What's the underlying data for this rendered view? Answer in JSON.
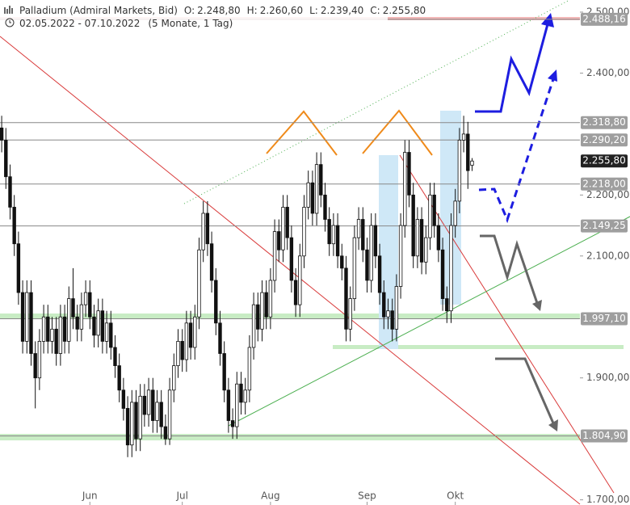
{
  "chart_data": {
    "type": "candlestick",
    "title": "Palladium (Admiral Markets, Bid)",
    "quote_keys": [
      "O:",
      "H:",
      "L:",
      "C:"
    ],
    "quote_values": [
      2248.8,
      2260.6,
      2239.4,
      2255.8
    ],
    "quote_value_labels": [
      "2.248,80",
      "2.260,60",
      "2.239,40",
      "2.255,80"
    ],
    "range": "02.05.2022 - 07.10.2022",
    "period": "(5 Monate, 1 Tag)",
    "up_color": "#ffffff",
    "down_color": "#111111",
    "outline_color": "#111111",
    "ylim": [
      1700,
      2500
    ],
    "yticks": [
      {
        "value": 1700,
        "label": "1.700,00"
      },
      {
        "value": 1900,
        "label": "1.900,00"
      },
      {
        "value": 2100,
        "label": "2.100,00"
      },
      {
        "value": 2200,
        "label": "2.200,00"
      },
      {
        "value": 2400,
        "label": "2.400,00"
      },
      {
        "value": 2500,
        "label": "2.500,00"
      }
    ],
    "xlim": [
      -0.4,
      149.6
    ],
    "xticks": [
      {
        "value": 21,
        "label": "Jun"
      },
      {
        "value": 43,
        "label": "Jul"
      },
      {
        "value": 64,
        "label": "Aug"
      },
      {
        "value": 87,
        "label": "Sep"
      },
      {
        "value": 108,
        "label": "Okt"
      }
    ],
    "levels": [
      {
        "value": 2488.16,
        "label": "2.488,16"
      },
      {
        "value": 2318.8,
        "label": "2.318,80"
      },
      {
        "value": 2290.2,
        "label": "2.290,20"
      },
      {
        "value": 2255.8,
        "label": "2.255,80"
      },
      {
        "value": 2218,
        "label": "2.218,00"
      },
      {
        "value": 2149.25,
        "label": "2.149,25"
      },
      {
        "value": 1997.1,
        "label": "1.997,10"
      },
      {
        "value": 1804.9,
        "label": "1.804,90"
      }
    ],
    "level_colors": [
      "#9e9e9e",
      "#9e9e9e",
      "#9e9e9e",
      "#222222",
      "#9e9e9e",
      "#9e9e9e",
      "#9e9e9e",
      "#9e9e9e"
    ],
    "x": [
      0,
      1,
      2,
      3,
      4,
      5,
      6,
      7,
      8,
      9,
      10,
      11,
      12,
      13,
      14,
      15,
      16,
      17,
      18,
      19,
      20,
      21,
      22,
      23,
      24,
      25,
      26,
      27,
      28,
      29,
      30,
      31,
      32,
      33,
      34,
      35,
      36,
      37,
      38,
      39,
      40,
      41,
      42,
      43,
      44,
      45,
      46,
      47,
      48,
      49,
      50,
      51,
      52,
      53,
      54,
      55,
      56,
      57,
      58,
      59,
      60,
      61,
      62,
      63,
      64,
      65,
      66,
      67,
      68,
      69,
      70,
      71,
      72,
      73,
      74,
      75,
      76,
      77,
      78,
      79,
      80,
      81,
      82,
      83,
      84,
      85,
      86,
      87,
      88,
      89,
      90,
      91,
      92,
      93,
      94,
      95,
      96,
      97,
      98,
      99,
      100,
      101,
      102,
      103,
      104,
      105,
      106,
      107,
      108,
      109,
      110,
      111,
      112
    ],
    "open": [
      2310,
      2290,
      2230,
      2180,
      2120,
      2040,
      1960,
      2040,
      1940,
      1900,
      1960,
      2000,
      1960,
      1980,
      1940,
      2000,
      1960,
      2030,
      2000,
      1980,
      2020,
      2040,
      2000,
      1970,
      2010,
      1960,
      1990,
      1950,
      1920,
      1880,
      1850,
      1790,
      1860,
      1800,
      1870,
      1840,
      1880,
      1830,
      1860,
      1820,
      1800,
      1880,
      1920,
      1960,
      1930,
      1990,
      1950,
      2000,
      2110,
      2170,
      2120,
      2060,
      1990,
      1940,
      1880,
      1830,
      1820,
      1890,
      1860,
      1880,
      1950,
      2020,
      1980,
      2040,
      2000,
      2060,
      2140,
      2110,
      2180,
      2130,
      2060,
      2020,
      2100,
      2180,
      2220,
      2170,
      2250,
      2200,
      2160,
      2120,
      2150,
      2100,
      2080,
      1980,
      2030,
      2130,
      2160,
      2110,
      2060,
      2150,
      2100,
      2040,
      2000,
      2010,
      1980,
      2050,
      2150,
      2270,
      2200,
      2100,
      2160,
      2090,
      2130,
      2200,
      2150,
      2110,
      2030,
      2010,
      2150,
      2190,
      2290,
      2300,
      2248.8
    ],
    "high": [
      2330,
      2310,
      2250,
      2200,
      2140,
      2060,
      2060,
      2060,
      1960,
      1980,
      2020,
      2020,
      2000,
      2000,
      2020,
      2020,
      2050,
      2080,
      2020,
      2040,
      2060,
      2060,
      2020,
      2030,
      2030,
      2010,
      2010,
      1970,
      1940,
      1900,
      1870,
      1880,
      1880,
      1890,
      1890,
      1900,
      1900,
      1880,
      1880,
      1840,
      1900,
      1940,
      1980,
      1980,
      2010,
      2010,
      2020,
      2130,
      2190,
      2190,
      2140,
      2080,
      2010,
      1960,
      1900,
      1850,
      1910,
      1910,
      1900,
      1970,
      2040,
      2040,
      2060,
      2060,
      2080,
      2160,
      2160,
      2200,
      2200,
      2150,
      2080,
      2120,
      2200,
      2240,
      2240,
      2270,
      2270,
      2220,
      2180,
      2170,
      2170,
      2120,
      2100,
      2050,
      2150,
      2180,
      2180,
      2130,
      2170,
      2170,
      2120,
      2060,
      2030,
      2030,
      2070,
      2170,
      2290,
      2290,
      2220,
      2180,
      2180,
      2150,
      2220,
      2220,
      2170,
      2130,
      2050,
      2170,
      2210,
      2310,
      2330,
      2320,
      2260.6
    ],
    "low": [
      2270,
      2210,
      2160,
      2100,
      2020,
      1940,
      1940,
      1920,
      1850,
      1880,
      1940,
      1940,
      1940,
      1920,
      1920,
      1940,
      1940,
      1980,
      1960,
      1960,
      2000,
      1980,
      1950,
      1950,
      1940,
      1940,
      1930,
      1900,
      1860,
      1830,
      1770,
      1770,
      1780,
      1780,
      1820,
      1820,
      1810,
      1810,
      1800,
      1790,
      1790,
      1860,
      1900,
      1910,
      1910,
      1930,
      1930,
      1980,
      2090,
      2100,
      2040,
      1970,
      1920,
      1860,
      1810,
      1800,
      1800,
      1840,
      1840,
      1860,
      1930,
      1960,
      1960,
      1980,
      1980,
      2040,
      2090,
      2090,
      2110,
      2040,
      2000,
      2000,
      2080,
      2160,
      2150,
      2150,
      2180,
      2140,
      2100,
      2100,
      2080,
      2060,
      1960,
      1960,
      2010,
      2110,
      2090,
      2040,
      2040,
      2080,
      2020,
      1980,
      1980,
      1960,
      1960,
      2030,
      2130,
      2180,
      2080,
      2080,
      2070,
      2070,
      2110,
      2130,
      2090,
      2010,
      1990,
      1990,
      2130,
      2170,
      2270,
      2210,
      2239.4
    ],
    "close": [
      2290,
      2230,
      2180,
      2120,
      2040,
      1960,
      2040,
      1940,
      1900,
      1960,
      2000,
      1960,
      1980,
      1940,
      2000,
      1960,
      2030,
      2000,
      1980,
      2020,
      2040,
      2000,
      1970,
      2010,
      1960,
      1990,
      1950,
      1920,
      1880,
      1850,
      1790,
      1860,
      1800,
      1870,
      1840,
      1880,
      1830,
      1860,
      1820,
      1800,
      1880,
      1920,
      1960,
      1930,
      1990,
      1950,
      2000,
      2110,
      2170,
      2120,
      2060,
      1990,
      1940,
      1880,
      1830,
      1820,
      1890,
      1860,
      1880,
      1950,
      2020,
      1980,
      2040,
      2000,
      2060,
      2140,
      2110,
      2180,
      2130,
      2060,
      2020,
      2100,
      2180,
      2220,
      2170,
      2250,
      2200,
      2160,
      2120,
      2150,
      2100,
      2080,
      1980,
      2030,
      2130,
      2160,
      2110,
      2060,
      2150,
      2100,
      2040,
      2000,
      2010,
      1980,
      2050,
      2150,
      2270,
      2200,
      2100,
      2160,
      2090,
      2130,
      2200,
      2150,
      2110,
      2030,
      2010,
      2150,
      2190,
      2290,
      2300,
      2240,
      2255.8
    ]
  }
}
